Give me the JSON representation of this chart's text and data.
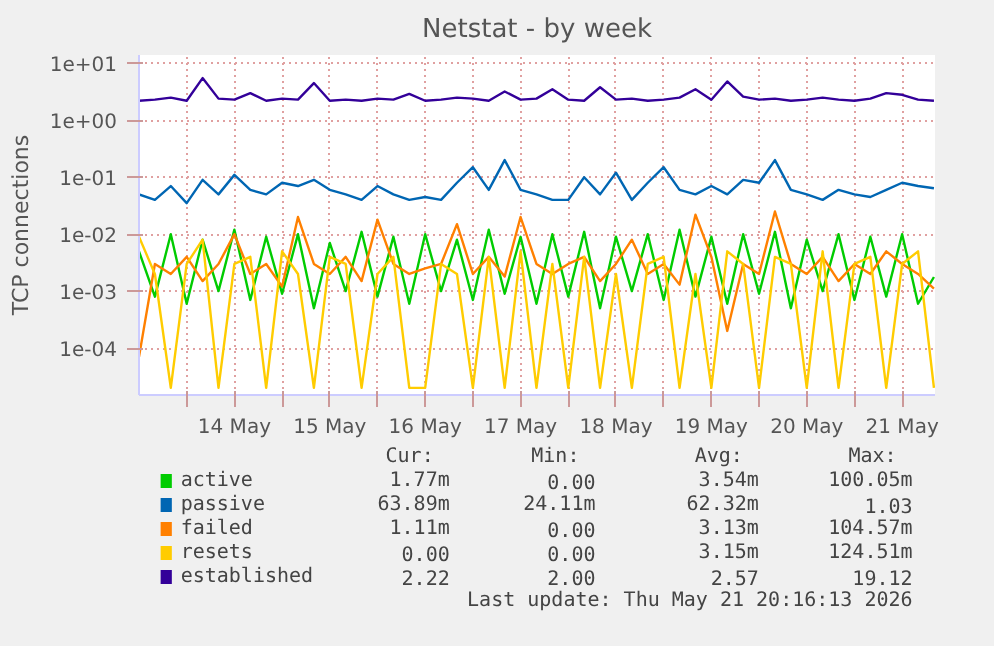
{
  "chart_data": {
    "type": "line",
    "title": "Netstat - by week",
    "ylabel": "TCP connections",
    "log": "y",
    "grid": true,
    "legend": "bottom",
    "x": [
      "2026-05-13T12:00",
      "2026-05-13T16:00",
      "2026-05-13T20:00",
      "2026-05-14T00:00",
      "2026-05-14T04:00",
      "2026-05-14T08:00",
      "2026-05-14T12:00",
      "2026-05-14T16:00",
      "2026-05-14T20:00",
      "2026-05-15T00:00",
      "2026-05-15T04:00",
      "2026-05-15T08:00",
      "2026-05-15T12:00",
      "2026-05-15T16:00",
      "2026-05-15T20:00",
      "2026-05-16T00:00",
      "2026-05-16T04:00",
      "2026-05-16T08:00",
      "2026-05-16T12:00",
      "2026-05-16T16:00",
      "2026-05-16T20:00",
      "2026-05-17T00:00",
      "2026-05-17T04:00",
      "2026-05-17T08:00",
      "2026-05-17T12:00",
      "2026-05-17T16:00",
      "2026-05-17T20:00",
      "2026-05-18T00:00",
      "2026-05-18T04:00",
      "2026-05-18T08:00",
      "2026-05-18T12:00",
      "2026-05-18T16:00",
      "2026-05-18T20:00",
      "2026-05-19T00:00",
      "2026-05-19T04:00",
      "2026-05-19T08:00",
      "2026-05-19T12:00",
      "2026-05-19T16:00",
      "2026-05-19T20:00",
      "2026-05-20T00:00",
      "2026-05-20T04:00",
      "2026-05-20T08:00",
      "2026-05-20T12:00",
      "2026-05-20T16:00",
      "2026-05-20T20:00",
      "2026-05-21T00:00",
      "2026-05-21T04:00",
      "2026-05-21T08:00",
      "2026-05-21T12:00",
      "2026-05-21T16:00",
      "2026-05-21T20:00"
    ],
    "xlim": [
      "2026-05-13T12:00",
      "2026-05-21T20:16"
    ],
    "xticks": [
      {
        "value": "2026-05-14T00:00",
        "label": null
      },
      {
        "value": "2026-05-14T12:00",
        "label": "14 May"
      },
      {
        "value": "2026-05-15T00:00",
        "label": null
      },
      {
        "value": "2026-05-15T12:00",
        "label": "15 May"
      },
      {
        "value": "2026-05-16T00:00",
        "label": null
      },
      {
        "value": "2026-05-16T12:00",
        "label": "16 May"
      },
      {
        "value": "2026-05-17T00:00",
        "label": null
      },
      {
        "value": "2026-05-17T12:00",
        "label": "17 May"
      },
      {
        "value": "2026-05-18T00:00",
        "label": null
      },
      {
        "value": "2026-05-18T12:00",
        "label": "18 May"
      },
      {
        "value": "2026-05-19T00:00",
        "label": null
      },
      {
        "value": "2026-05-19T12:00",
        "label": "19 May"
      },
      {
        "value": "2026-05-20T00:00",
        "label": null
      },
      {
        "value": "2026-05-20T12:00",
        "label": "20 May"
      },
      {
        "value": "2026-05-21T00:00",
        "label": null
      },
      {
        "value": "2026-05-21T12:00",
        "label": "21 May"
      }
    ],
    "ylim": [
      1.5e-05,
      14
    ],
    "yticks": [
      {
        "value": 0.0001,
        "label": "1e-04"
      },
      {
        "value": 0.001,
        "label": "1e-03"
      },
      {
        "value": 0.01,
        "label": "1e-02"
      },
      {
        "value": 0.1,
        "label": "1e-01"
      },
      {
        "value": 1,
        "label": "1e+00"
      },
      {
        "value": 10,
        "label": "1e+01"
      }
    ],
    "series": [
      {
        "name": "active",
        "color": "#00cc00",
        "values": [
          0.005,
          0.0008,
          0.01,
          0.0006,
          0.008,
          0.001,
          0.012,
          0.0007,
          0.009,
          0.0009,
          0.01,
          0.0005,
          0.007,
          0.001,
          0.011,
          0.0008,
          0.009,
          0.0006,
          0.01,
          0.001,
          0.008,
          0.0007,
          0.012,
          0.0009,
          0.009,
          0.0006,
          0.01,
          0.0008,
          0.011,
          0.0005,
          0.009,
          0.001,
          0.01,
          0.0007,
          0.012,
          0.0008,
          0.009,
          0.0006,
          0.01,
          0.0009,
          0.011,
          0.0005,
          0.008,
          0.001,
          0.01,
          0.0007,
          0.009,
          0.0008,
          0.01,
          0.0006,
          0.00177
        ]
      },
      {
        "name": "passive",
        "color": "#0066b3",
        "values": [
          0.05,
          0.04,
          0.07,
          0.035,
          0.09,
          0.05,
          0.11,
          0.06,
          0.05,
          0.08,
          0.07,
          0.09,
          0.06,
          0.05,
          0.04,
          0.07,
          0.05,
          0.04,
          0.045,
          0.04,
          0.08,
          0.15,
          0.06,
          0.2,
          0.06,
          0.05,
          0.04,
          0.04,
          0.1,
          0.05,
          0.12,
          0.04,
          0.08,
          0.15,
          0.06,
          0.05,
          0.07,
          0.05,
          0.09,
          0.08,
          0.2,
          0.06,
          0.05,
          0.04,
          0.06,
          0.05,
          0.045,
          0.06,
          0.08,
          0.07,
          0.064
        ]
      },
      {
        "name": "failed",
        "color": "#ff8000",
        "values": [
          7e-05,
          0.003,
          0.002,
          0.004,
          0.0015,
          0.003,
          0.01,
          0.002,
          0.003,
          0.0012,
          0.02,
          0.003,
          0.002,
          0.004,
          0.0015,
          0.018,
          0.003,
          0.002,
          0.0025,
          0.003,
          0.015,
          0.002,
          0.004,
          0.0018,
          0.02,
          0.003,
          0.002,
          0.003,
          0.004,
          0.0015,
          0.003,
          0.008,
          0.002,
          0.003,
          0.0013,
          0.022,
          0.004,
          0.0002,
          0.003,
          0.002,
          0.025,
          0.003,
          0.002,
          0.004,
          0.0015,
          0.003,
          0.002,
          0.005,
          0.003,
          0.002,
          0.00111
        ]
      },
      {
        "name": "resets",
        "color": "#ffcc00",
        "values": [
          0.009,
          0.002,
          2e-05,
          0.003,
          0.008,
          2e-05,
          0.003,
          0.004,
          2e-05,
          0.005,
          0.002,
          2e-05,
          0.004,
          0.003,
          2e-05,
          0.002,
          0.004,
          2e-05,
          2e-05,
          0.003,
          0.002,
          2e-05,
          0.004,
          2e-05,
          0.005,
          2e-05,
          0.003,
          2e-05,
          0.004,
          2e-05,
          0.002,
          2e-05,
          0.003,
          0.004,
          2e-05,
          0.002,
          2e-05,
          0.005,
          0.003,
          2e-05,
          0.004,
          0.003,
          2e-05,
          0.005,
          2e-05,
          0.003,
          0.004,
          2e-05,
          0.003,
          0.005,
          2e-05
        ]
      },
      {
        "name": "established",
        "color": "#330099",
        "values": [
          2.2,
          2.3,
          2.5,
          2.2,
          5.5,
          2.4,
          2.3,
          3.0,
          2.2,
          2.4,
          2.3,
          4.5,
          2.2,
          2.3,
          2.2,
          2.4,
          2.3,
          2.9,
          2.2,
          2.3,
          2.5,
          2.4,
          2.2,
          3.2,
          2.3,
          2.4,
          3.5,
          2.3,
          2.2,
          3.8,
          2.3,
          2.4,
          2.2,
          2.3,
          2.5,
          3.5,
          2.3,
          4.8,
          2.6,
          2.3,
          2.4,
          2.2,
          2.3,
          2.5,
          2.3,
          2.2,
          2.4,
          3.0,
          2.8,
          2.3,
          2.2
        ]
      }
    ],
    "annotations": [
      "Cur:",
      "Min:",
      "Avg:",
      "Max:",
      "1.77m",
      "0.00",
      "3.54m",
      "100.05m",
      "63.89m",
      "24.11m",
      "62.32m",
      "1.03",
      "1.11m",
      "0.00",
      "3.13m",
      "104.57m",
      "0.00",
      "0.00",
      "3.15m",
      "124.51m",
      "2.22",
      "2.00",
      "2.57",
      "19.12",
      "Last update: Thu May 21 20:16:13 2026"
    ]
  }
}
